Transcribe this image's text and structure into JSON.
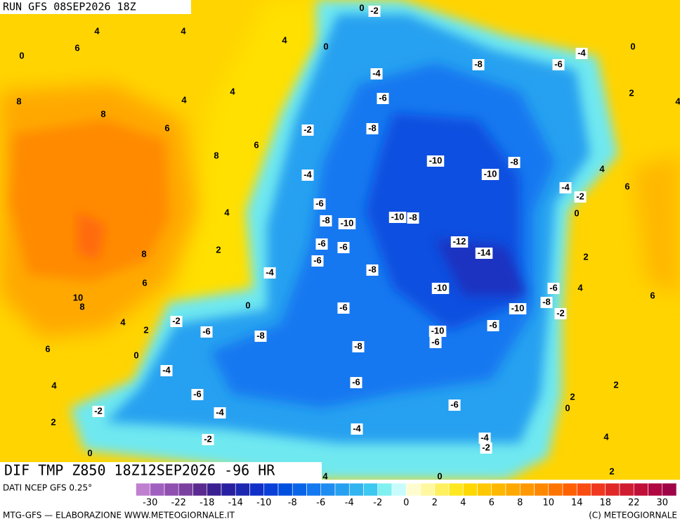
{
  "header": {
    "run_label": "RUN GFS 08SEP2026 18Z",
    "title": "DIF TMP Z850 18Z12SEP2026 -96 HR"
  },
  "footer": {
    "source": "DATI NCEP GFS 0.25°",
    "credit": "MTG-GFS — ELABORAZIONE WWW.METEOGIORNALE.IT",
    "copyright": "(C) METEOGIORNALE"
  },
  "contour_labels": [
    0,
    -2,
    4,
    4,
    4,
    6,
    0,
    0,
    0,
    -4,
    -8,
    -6,
    -4,
    4,
    4,
    2,
    -6,
    8,
    4,
    8,
    6,
    -2,
    -8,
    6,
    8,
    -10,
    -8,
    -10,
    -4,
    4,
    -4,
    -2,
    6,
    -6,
    4,
    0,
    -8,
    -10,
    -10,
    -8,
    2,
    -6,
    -6,
    -12,
    -14,
    8,
    -6,
    2,
    -4,
    -8,
    6,
    -6,
    4,
    -10,
    6,
    10,
    8,
    0,
    -6,
    -8,
    -10,
    -2,
    4,
    2,
    -2,
    -6,
    -8,
    -10,
    -6,
    -6,
    6,
    0,
    -8,
    -4,
    4,
    -6,
    2,
    -6,
    2,
    -6,
    -2,
    -4,
    0,
    2,
    -4,
    -4,
    4,
    -2,
    -2,
    0,
    4,
    0,
    2
  ],
  "colorbar": {
    "colors": [
      "#c080d0",
      "#a060c0",
      "#9050b0",
      "#7a40a0",
      "#5a2a90",
      "#3a2090",
      "#2820a0",
      "#1c28b0",
      "#1030c8",
      "#0a40d8",
      "#0050e0",
      "#0a64e8",
      "#1478f0",
      "#1e8cf0",
      "#28a0f0",
      "#32b4f0",
      "#3cc8f0",
      "#80f0f0",
      "#c8fcfc",
      "#fffcd0",
      "#fff8a0",
      "#fff060",
      "#ffe820",
      "#ffd800",
      "#ffc800",
      "#ffb800",
      "#ffa800",
      "#ff9800",
      "#ff8800",
      "#ff7400",
      "#ff6000",
      "#f84c10",
      "#f03820",
      "#e02828",
      "#d01c30",
      "#c01038",
      "#b00840",
      "#a00448"
    ],
    "ticks": [
      -30,
      -22,
      -18,
      -14,
      -10,
      -8,
      -6,
      -4,
      -2,
      0,
      2,
      4,
      6,
      8,
      10,
      14,
      18,
      22,
      30
    ]
  }
}
